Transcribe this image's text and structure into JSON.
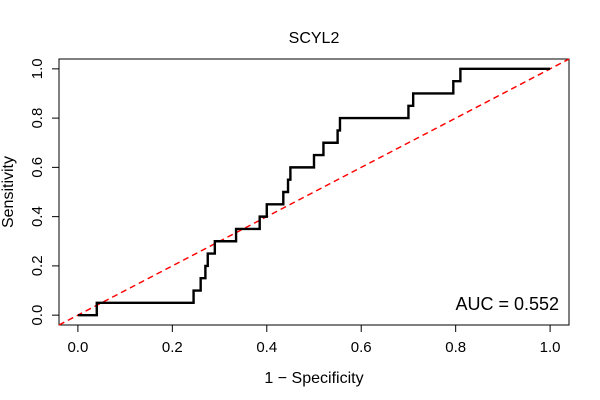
{
  "chart_data": {
    "type": "line",
    "title": "SCYL2",
    "xlabel": "1 − Specificity",
    "ylabel": "Sensitivity",
    "xlim": [
      -0.04,
      1.04
    ],
    "ylim": [
      -0.04,
      1.04
    ],
    "x_ticks": [
      "0.0",
      "0.2",
      "0.4",
      "0.6",
      "0.8",
      "1.0"
    ],
    "y_ticks": [
      "0.0",
      "0.2",
      "0.4",
      "0.6",
      "0.8",
      "1.0"
    ],
    "grid": false,
    "annotation": "AUC = 0.552",
    "series": [
      {
        "style": "solid",
        "color": "#000000",
        "points": [
          [
            0.0,
            0.0
          ],
          [
            0.04,
            0.0
          ],
          [
            0.04,
            0.05
          ],
          [
            0.245,
            0.05
          ],
          [
            0.245,
            0.1
          ],
          [
            0.26,
            0.1
          ],
          [
            0.26,
            0.15
          ],
          [
            0.27,
            0.15
          ],
          [
            0.27,
            0.2
          ],
          [
            0.275,
            0.2
          ],
          [
            0.275,
            0.25
          ],
          [
            0.29,
            0.25
          ],
          [
            0.29,
            0.3
          ],
          [
            0.335,
            0.3
          ],
          [
            0.335,
            0.35
          ],
          [
            0.385,
            0.35
          ],
          [
            0.385,
            0.4
          ],
          [
            0.4,
            0.4
          ],
          [
            0.4,
            0.45
          ],
          [
            0.435,
            0.45
          ],
          [
            0.435,
            0.5
          ],
          [
            0.445,
            0.5
          ],
          [
            0.445,
            0.55
          ],
          [
            0.45,
            0.55
          ],
          [
            0.45,
            0.6
          ],
          [
            0.5,
            0.6
          ],
          [
            0.5,
            0.65
          ],
          [
            0.52,
            0.65
          ],
          [
            0.52,
            0.7
          ],
          [
            0.55,
            0.7
          ],
          [
            0.55,
            0.75
          ],
          [
            0.555,
            0.75
          ],
          [
            0.555,
            0.8
          ],
          [
            0.7,
            0.8
          ],
          [
            0.7,
            0.85
          ],
          [
            0.71,
            0.85
          ],
          [
            0.71,
            0.9
          ],
          [
            0.795,
            0.9
          ],
          [
            0.795,
            0.95
          ],
          [
            0.81,
            0.95
          ],
          [
            0.81,
            1.0
          ],
          [
            1.0,
            1.0
          ]
        ]
      },
      {
        "style": "dashed",
        "color": "#ff0000",
        "points": [
          [
            -0.04,
            -0.04
          ],
          [
            1.04,
            1.04
          ]
        ]
      }
    ]
  }
}
